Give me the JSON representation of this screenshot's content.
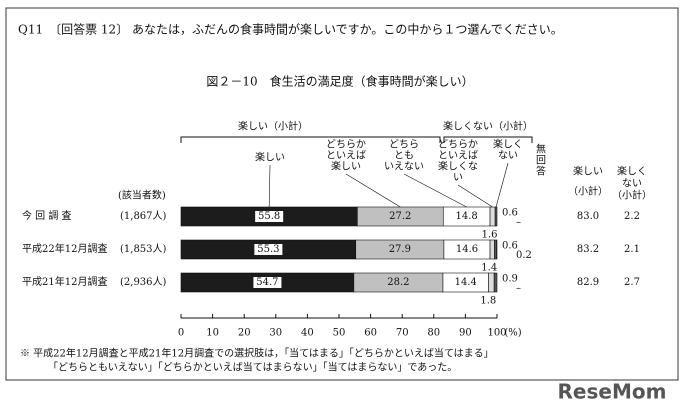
{
  "question": "Q11　〔回答票 12〕 あなたは，ふだんの食事時間が楽しいですか。この中から１つ選んでください。",
  "chart_data": {
    "type": "stacked-bar-horizontal",
    "title": "図２－10　食生活の満足度（食事時間が楽しい）",
    "group_labels": [
      "楽しい（小計）",
      "楽しくない（小計）"
    ],
    "count_header": "(該当者数)",
    "categories": [
      "今 回 調 査",
      "平成22年12月調査",
      "平成21年12月調査"
    ],
    "counts": [
      "(1,867人)",
      "(1,853人)",
      "(2,936人)"
    ],
    "series": [
      {
        "label_lines": [
          "楽しい"
        ],
        "color": "#1c1c1c",
        "values": [
          55.8,
          55.3,
          54.7
        ]
      },
      {
        "label_lines": [
          "どちらか",
          "といえば",
          "楽しい"
        ],
        "color": "#c0c0c0",
        "values": [
          27.2,
          27.9,
          28.2
        ]
      },
      {
        "label_lines": [
          "どちら",
          "とも",
          "いえない"
        ],
        "color": "#ffffff",
        "values": [
          14.8,
          14.6,
          14.4
        ]
      },
      {
        "label_lines": [
          "どちらか",
          "といえば",
          "楽しくな",
          "い"
        ],
        "color": "#dcdcdc",
        "values": [
          1.6,
          1.4,
          1.8
        ]
      },
      {
        "label_lines": [
          "楽しく",
          "ない"
        ],
        "color": "#555555",
        "values": [
          0.6,
          0.6,
          0.9
        ]
      },
      {
        "label_lines": [
          "無",
          "回",
          "答"
        ],
        "color": "#999999",
        "values": [
          null,
          0.2,
          null
        ],
        "value_labels": [
          "–",
          "0.2",
          "–"
        ]
      }
    ],
    "subtotals": [
      {
        "label_lines": [
          "楽しい",
          "（小計）"
        ],
        "values": [
          83.0,
          83.2,
          82.9
        ],
        "value_labels": [
          "83.0",
          "83.2",
          "82.9"
        ]
      },
      {
        "label_lines": [
          "楽しく",
          "ない",
          "（小計）"
        ],
        "values": [
          2.2,
          2.1,
          2.7
        ]
      }
    ],
    "xlim": [
      0,
      100
    ],
    "xticks": [
      0,
      10,
      20,
      30,
      40,
      50,
      60,
      70,
      80,
      90,
      100
    ],
    "x_unit": "(%)",
    "footnote": [
      "※ 平成22年12月調査と平成21年12月調査での選択肢は，「当てはまる」「どちらかといえば当てはまる」",
      "「どちらともいえない」「どちらかといえば当てはまらない」「当てはまらない」であった。"
    ]
  },
  "watermark": "ReseMom"
}
